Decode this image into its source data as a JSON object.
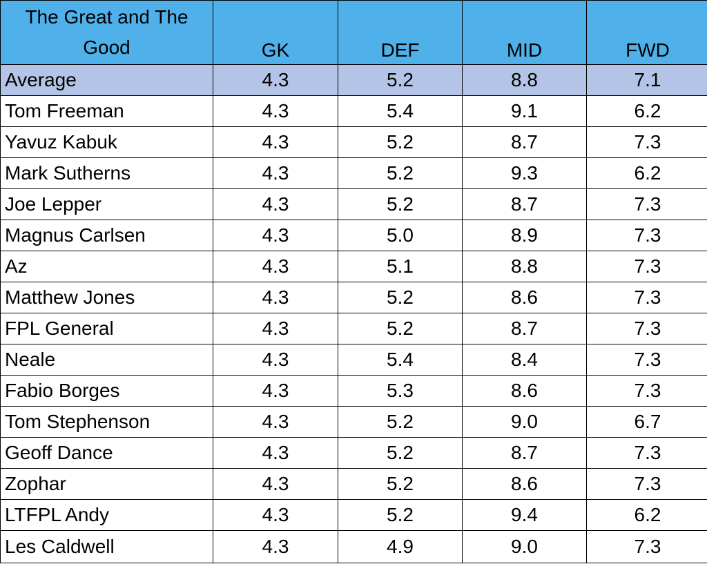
{
  "headers": {
    "name": "The Great and The Good",
    "gk": "GK",
    "def": "DEF",
    "mid": "MID",
    "fwd": "FWD"
  },
  "colors": {
    "header_bg": "#4fb0ea",
    "average_row_bg": "#b4c4e6",
    "grid_line": "#000000"
  },
  "rows": [
    {
      "name": "Average",
      "gk": "4.3",
      "def": "5.2",
      "mid": "8.8",
      "fwd": "7.1"
    },
    {
      "name": "Tom Freeman",
      "gk": "4.3",
      "def": "5.4",
      "mid": "9.1",
      "fwd": "6.2"
    },
    {
      "name": "Yavuz Kabuk",
      "gk": "4.3",
      "def": "5.2",
      "mid": "8.7",
      "fwd": "7.3"
    },
    {
      "name": "Mark Sutherns",
      "gk": "4.3",
      "def": "5.2",
      "mid": "9.3",
      "fwd": "6.2"
    },
    {
      "name": "Joe Lepper",
      "gk": "4.3",
      "def": "5.2",
      "mid": "8.7",
      "fwd": "7.3"
    },
    {
      "name": "Magnus Carlsen",
      "gk": "4.3",
      "def": "5.0",
      "mid": "8.9",
      "fwd": "7.3"
    },
    {
      "name": "Az",
      "gk": "4.3",
      "def": "5.1",
      "mid": "8.8",
      "fwd": "7.3"
    },
    {
      "name": "Matthew Jones",
      "gk": "4.3",
      "def": "5.2",
      "mid": "8.6",
      "fwd": "7.3"
    },
    {
      "name": "FPL General",
      "gk": "4.3",
      "def": "5.2",
      "mid": "8.7",
      "fwd": "7.3"
    },
    {
      "name": "Neale",
      "gk": "4.3",
      "def": "5.4",
      "mid": "8.4",
      "fwd": "7.3"
    },
    {
      "name": "Fabio Borges",
      "gk": "4.3",
      "def": "5.3",
      "mid": "8.6",
      "fwd": "7.3"
    },
    {
      "name": "Tom Stephenson",
      "gk": "4.3",
      "def": "5.2",
      "mid": "9.0",
      "fwd": "6.7"
    },
    {
      "name": "Geoff Dance",
      "gk": "4.3",
      "def": "5.2",
      "mid": "8.7",
      "fwd": "7.3"
    },
    {
      "name": "Zophar",
      "gk": "4.3",
      "def": "5.2",
      "mid": "8.6",
      "fwd": "7.3"
    },
    {
      "name": "LTFPL Andy",
      "gk": "4.3",
      "def": "5.2",
      "mid": "9.4",
      "fwd": "6.2"
    },
    {
      "name": "Les Caldwell",
      "gk": "4.3",
      "def": "4.9",
      "mid": "9.0",
      "fwd": "7.3"
    }
  ]
}
